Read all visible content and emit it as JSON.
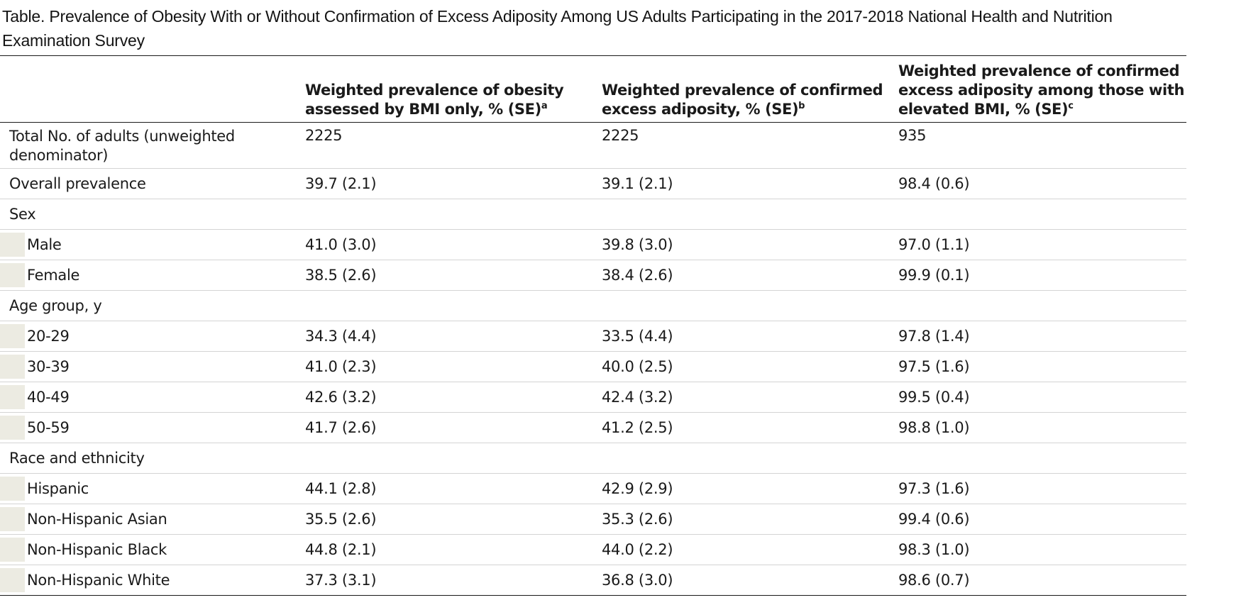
{
  "title": {
    "text": "Table. Prevalence of Obesity With or Without Confirmation of Excess Adiposity Among US Adults Participating in the 2017-2018 National Health and Nutrition Examination Survey"
  },
  "header": {
    "col0": "",
    "col1": {
      "text": "Weighted prevalence of obesity assessed by BMI only, % (SE)",
      "sup": "a"
    },
    "col2": {
      "text": "Weighted prevalence of confirmed excess adiposity, % (SE)",
      "sup": "b"
    },
    "col3": {
      "text": "Weighted prevalence of confirmed excess adiposity among those with elevated BMI, % (SE)",
      "sup": "c"
    }
  },
  "rows": [
    {
      "label": "Total No. of adults (unweighted denominator)",
      "v1": "2225",
      "v2": "2225",
      "v3": "935"
    },
    {
      "label": "Overall prevalence",
      "v1": "39.7 (2.1)",
      "v2": "39.1 (2.1)",
      "v3": "98.4 (0.6)"
    },
    {
      "label": "Sex",
      "v1": "",
      "v2": "",
      "v3": ""
    },
    {
      "label": "Male",
      "v1": "41.0 (3.0)",
      "v2": "39.8 (3.0)",
      "v3": "97.0 (1.1)"
    },
    {
      "label": "Female",
      "v1": "38.5 (2.6)",
      "v2": "38.4 (2.6)",
      "v3": "99.9 (0.1)"
    },
    {
      "label": "Age group, y",
      "v1": "",
      "v2": "",
      "v3": ""
    },
    {
      "label": "20-29",
      "v1": "34.3 (4.4)",
      "v2": "33.5 (4.4)",
      "v3": "97.8 (1.4)"
    },
    {
      "label": "30-39",
      "v1": "41.0 (2.3)",
      "v2": "40.0 (2.5)",
      "v3": "97.5 (1.6)"
    },
    {
      "label": "40-49",
      "v1": "42.6 (3.2)",
      "v2": "42.4 (3.2)",
      "v3": "99.5 (0.4)"
    },
    {
      "label": "50-59",
      "v1": "41.7 (2.6)",
      "v2": "41.2 (2.5)",
      "v3": "98.8 (1.0)"
    },
    {
      "label": "Race and ethnicity",
      "v1": "",
      "v2": "",
      "v3": ""
    },
    {
      "label": "Hispanic",
      "v1": "44.1 (2.8)",
      "v2": "42.9 (2.9)",
      "v3": "97.3 (1.6)"
    },
    {
      "label": "Non-Hispanic Asian",
      "v1": "35.5 (2.6)",
      "v2": "35.3 (2.6)",
      "v3": "99.4 (0.6)"
    },
    {
      "label": "Non-Hispanic Black",
      "v1": "44.8 (2.1)",
      "v2": "44.0 (2.2)",
      "v3": "98.3 (1.0)"
    },
    {
      "label": "Non-Hispanic White",
      "v1": "37.3 (3.1)",
      "v2": "36.8 (3.0)",
      "v3": "98.6 (0.7)"
    }
  ],
  "colors": {
    "indent_shade": "#ecebe2",
    "rule": "#1a1a1a",
    "row_divider": "#d4d4d4"
  }
}
